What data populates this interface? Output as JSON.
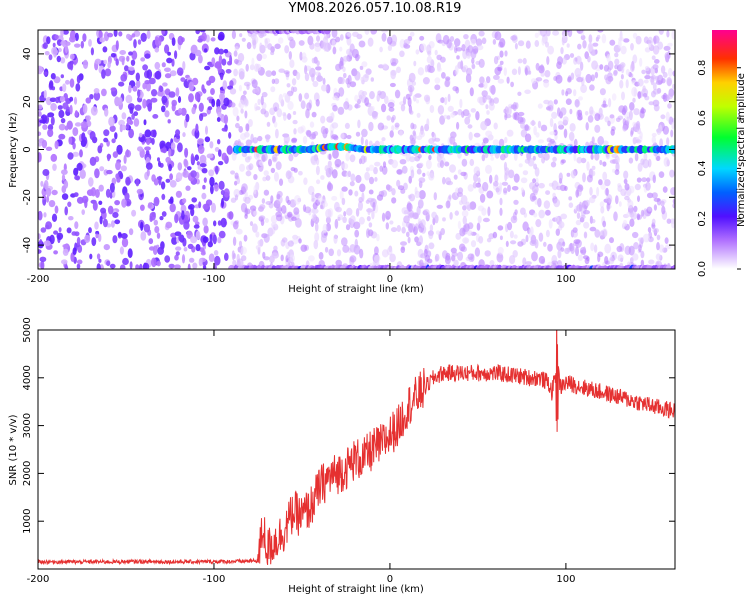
{
  "page": {
    "title": "YM08.2026.057.10.08.R19"
  },
  "colors": {
    "series_line": "#e53030",
    "background": "#ffffff",
    "axis": "#000000"
  },
  "chart_data": [
    {
      "type": "heatmap",
      "title": "YM08.2026.057.10.08.R19",
      "xlabel": "Height of straight line (km)",
      "ylabel": "Frequency (Hz)",
      "xlim": [
        -200,
        162
      ],
      "ylim": [
        -50,
        50
      ],
      "x_ticks": [
        -200,
        -100,
        0,
        100
      ],
      "y_ticks": [
        -40,
        -20,
        0,
        20,
        40
      ],
      "colorbar": {
        "label": "Normalized spectral amplitude",
        "range": [
          0.0,
          0.95
        ],
        "ticks": [
          "0.0",
          "0.2",
          "0.4",
          "0.6",
          "0.8"
        ],
        "colormap": "rainbow (white-purple-blue-cyan-green-yellow-red-magenta)"
      },
      "features": [
        {
          "name": "",
          "frequency_hz": 0,
          "x_range_km": [
            -88,
            162
          ],
          "peak_amplitude": 0.85
        },
        {
          "name": "",
          "frequency_hz": 50,
          "x_range_km": [
            -80,
            -35
          ],
          "peak_amplitude": 0.2
        },
        {
          "name": "",
          "frequency_hz": -50,
          "x_range_km": [
            -90,
            162
          ],
          "peak_amplitude": 0.25
        }
      ],
      "noise_region": {
        "x_range_km": [
          -200,
          -90
        ],
        "amplitude_range": [
          0.05,
          0.2
        ]
      }
    },
    {
      "type": "line",
      "title": "",
      "xlabel": "Height of straight line (km)",
      "ylabel": "SNR (10 * v/v)",
      "xlim": [
        -200,
        162
      ],
      "ylim": [
        0,
        5000
      ],
      "x_ticks": [
        -200,
        -100,
        0,
        100
      ],
      "y_ticks": [
        1000,
        2000,
        3000,
        4000,
        5000
      ],
      "grid": false,
      "series": [
        {
          "name": "",
          "color": "#e53030",
          "x": [
            -200,
            -180,
            -160,
            -140,
            -120,
            -100,
            -85,
            -75,
            -72,
            -70,
            -65,
            -60,
            -55,
            -50,
            -45,
            -40,
            -35,
            -30,
            -25,
            -20,
            -15,
            -10,
            -5,
            0,
            5,
            10,
            15,
            20,
            25,
            30,
            35,
            40,
            50,
            60,
            70,
            80,
            85,
            90,
            92,
            95,
            97,
            100,
            110,
            120,
            130,
            140,
            150,
            162
          ],
          "y": [
            150,
            150,
            150,
            155,
            150,
            155,
            160,
            170,
            900,
            400,
            600,
            800,
            1200,
            1100,
            1300,
            1700,
            1900,
            2000,
            2100,
            2300,
            2300,
            2500,
            2600,
            2800,
            3000,
            3400,
            3600,
            3800,
            4000,
            4100,
            4100,
            4100,
            4100,
            4100,
            4050,
            4000,
            4000,
            3900,
            3700,
            4200,
            3800,
            3900,
            3800,
            3700,
            3600,
            3500,
            3400,
            3300
          ]
        }
      ]
    }
  ]
}
